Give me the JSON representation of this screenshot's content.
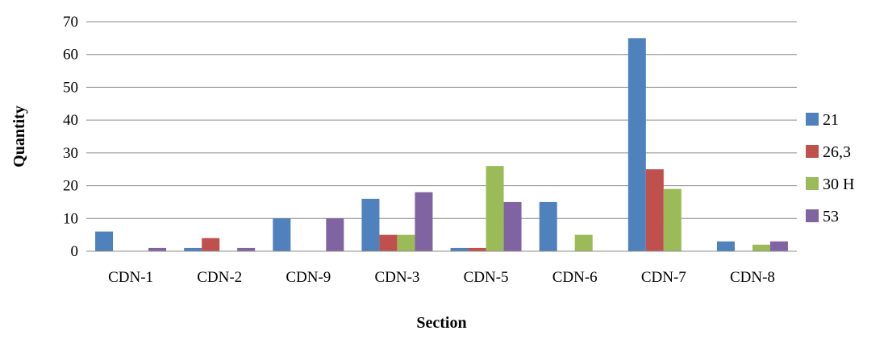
{
  "chart_data": {
    "type": "bar",
    "categories": [
      "CDN-1",
      "CDN-2",
      "CDN-9",
      "CDN-3",
      "CDN-5",
      "CDN-6",
      "CDN-7",
      "CDN-8"
    ],
    "series": [
      {
        "name": "21",
        "color": "#4F81BD",
        "values": [
          6,
          1,
          10,
          16,
          1,
          15,
          65,
          3
        ]
      },
      {
        "name": "26,3",
        "color": "#C0504D",
        "values": [
          0,
          4,
          0,
          5,
          1,
          0,
          25,
          0
        ]
      },
      {
        "name": "30 H",
        "color": "#9BBB59",
        "values": [
          0,
          0,
          0,
          5,
          26,
          5,
          19,
          2
        ]
      },
      {
        "name": "53",
        "color": "#8064A2",
        "values": [
          1,
          1,
          10,
          18,
          15,
          0,
          0,
          3
        ]
      }
    ],
    "xlabel": "Section",
    "ylabel": "Quantity",
    "ylim": [
      0,
      70
    ],
    "yticks": [
      0,
      10,
      20,
      30,
      40,
      50,
      60,
      70
    ],
    "grid": true,
    "legend": "right"
  }
}
